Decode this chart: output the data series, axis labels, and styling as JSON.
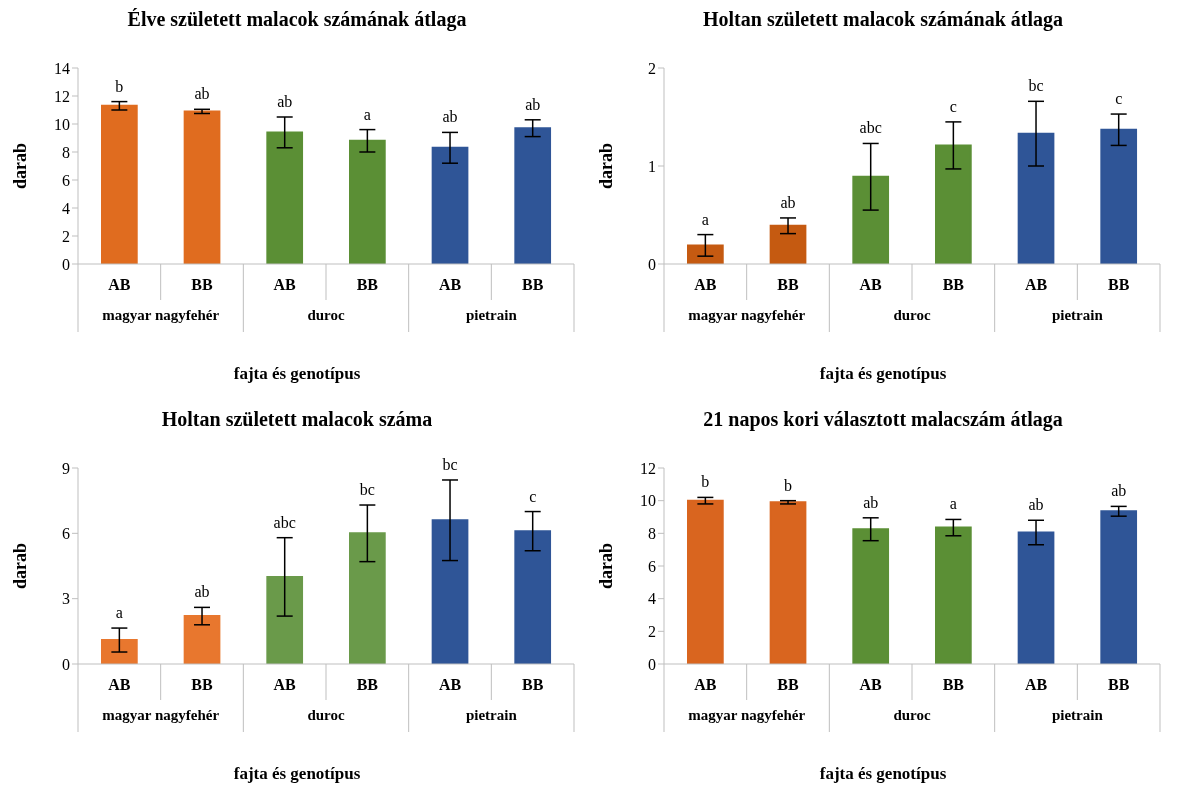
{
  "chart_data": [
    {
      "type": "bar",
      "title": "Élve született malacok számának átlaga",
      "xlabel": "fajta és genotípus",
      "ylabel": "darab",
      "categories": [
        "AB",
        "BB",
        "AB",
        "BB",
        "AB",
        "BB"
      ],
      "annotations": [
        "magyar nagyfehér",
        "duroc",
        "pietrain"
      ],
      "values": [
        11.3,
        10.9,
        9.4,
        8.8,
        8.3,
        9.7
      ],
      "errors": [
        0.3,
        0.15,
        1.1,
        0.8,
        1.1,
        0.6
      ],
      "value_labels": [
        "b",
        "ab",
        "ab",
        "a",
        "ab",
        "ab"
      ],
      "colors": [
        "#e06c1f",
        "#e06c1f",
        "#5b8f35",
        "#5b8f35",
        "#2f5597",
        "#2f5597"
      ],
      "ylim": [
        0,
        14
      ],
      "yticks": [
        0,
        2,
        4,
        6,
        8,
        10,
        12,
        14
      ],
      "grid": false,
      "legend": false
    },
    {
      "type": "bar",
      "title": "Holtan született malacok számának átlaga",
      "xlabel": "fajta és genotípus",
      "ylabel": "darab",
      "categories": [
        "AB",
        "BB",
        "AB",
        "BB",
        "AB",
        "BB"
      ],
      "annotations": [
        "magyar nagyfehér",
        "duroc",
        "pietrain"
      ],
      "values": [
        0.19,
        0.39,
        0.89,
        1.21,
        1.33,
        1.37
      ],
      "errors": [
        0.11,
        0.08,
        0.34,
        0.24,
        0.33,
        0.16
      ],
      "value_labels": [
        "a",
        "ab",
        "abc",
        "c",
        "bc",
        "c"
      ],
      "colors": [
        "#c55a11",
        "#c55a11",
        "#5b8f35",
        "#5b8f35",
        "#2f5597",
        "#2f5597"
      ],
      "ylim": [
        0,
        2
      ],
      "yticks": [
        0,
        1,
        2
      ],
      "grid": false,
      "legend": false
    },
    {
      "type": "bar",
      "title": "Holtan született malacok száma",
      "xlabel": "fajta és genotípus",
      "ylabel": "darab",
      "categories": [
        "AB",
        "BB",
        "AB",
        "BB",
        "AB",
        "BB"
      ],
      "annotations": [
        "magyar nagyfehér",
        "duroc",
        "pietrain"
      ],
      "values": [
        1.1,
        2.2,
        4.0,
        6.0,
        6.6,
        6.1
      ],
      "errors": [
        0.55,
        0.4,
        1.8,
        1.3,
        1.85,
        0.9
      ],
      "value_labels": [
        "a",
        "ab",
        "abc",
        "bc",
        "bc",
        "c"
      ],
      "colors": [
        "#e8772e",
        "#e8772e",
        "#6a9a4a",
        "#6a9a4a",
        "#2f5597",
        "#2f5597"
      ],
      "ylim": [
        0,
        9
      ],
      "yticks": [
        0,
        3,
        6,
        9
      ],
      "grid": false,
      "legend": false
    },
    {
      "type": "bar",
      "title": "21 napos kori választott malacszám átlaga",
      "xlabel": "fajta és genotípus",
      "ylabel": "darab",
      "categories": [
        "AB",
        "BB",
        "AB",
        "BB",
        "AB",
        "BB"
      ],
      "annotations": [
        "magyar nagyfehér",
        "duroc",
        "pietrain"
      ],
      "values": [
        10.0,
        9.9,
        8.25,
        8.35,
        8.05,
        9.35
      ],
      "errors": [
        0.2,
        0.1,
        0.7,
        0.5,
        0.75,
        0.3
      ],
      "value_labels": [
        "b",
        "b",
        "ab",
        "a",
        "ab",
        "ab"
      ],
      "colors": [
        "#d9651f",
        "#d9651f",
        "#5b8f35",
        "#5b8f35",
        "#2f5597",
        "#2f5597"
      ],
      "ylim": [
        0,
        12
      ],
      "yticks": [
        0,
        2,
        4,
        6,
        8,
        10,
        12
      ],
      "grid": false,
      "legend": false
    }
  ]
}
